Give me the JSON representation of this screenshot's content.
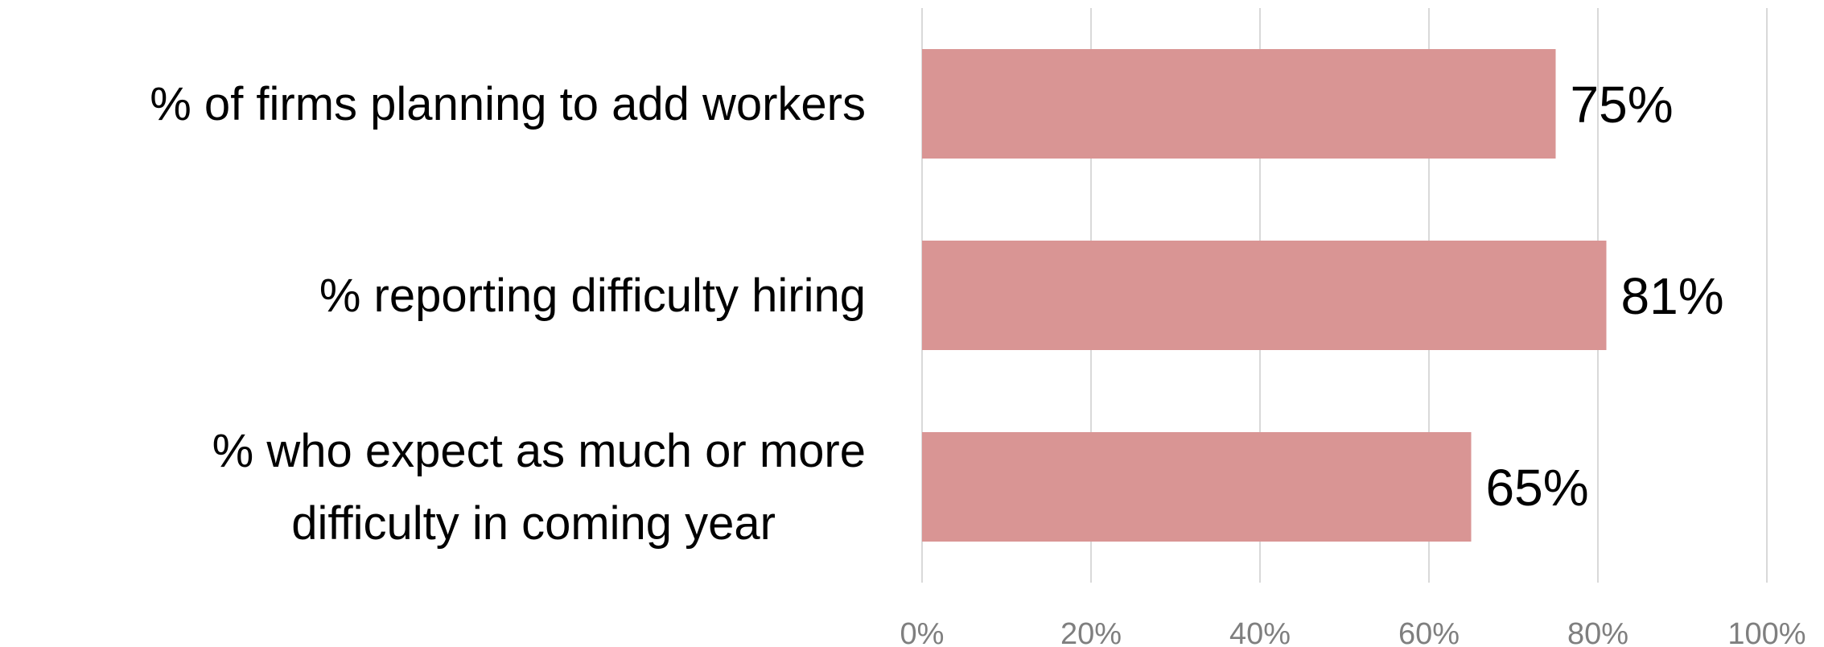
{
  "chart_data": {
    "type": "bar",
    "orientation": "horizontal",
    "title": "",
    "xlabel": "",
    "ylabel": "",
    "categories": [
      "% of firms planning to add workers",
      "% reporting difficulty hiring",
      "% who expect as much or more difficulty in coming year"
    ],
    "category_label_lines": [
      [
        "% of firms planning to add workers"
      ],
      [
        "% reporting difficulty hiring"
      ],
      [
        "% who expect as much or more",
        "difficulty in coming year"
      ]
    ],
    "values": [
      75,
      81,
      65
    ],
    "data_labels": [
      "75%",
      "81%",
      "65%"
    ],
    "xlim": [
      0,
      100
    ],
    "xticks": [
      0,
      20,
      40,
      60,
      80,
      100
    ],
    "xtick_labels": [
      "0%",
      "20%",
      "40%",
      "60%",
      "80%",
      "100%"
    ],
    "grid": "vertical",
    "legend": "none",
    "bar_color": "#d99594",
    "grid_color": "#d9d9d9"
  }
}
